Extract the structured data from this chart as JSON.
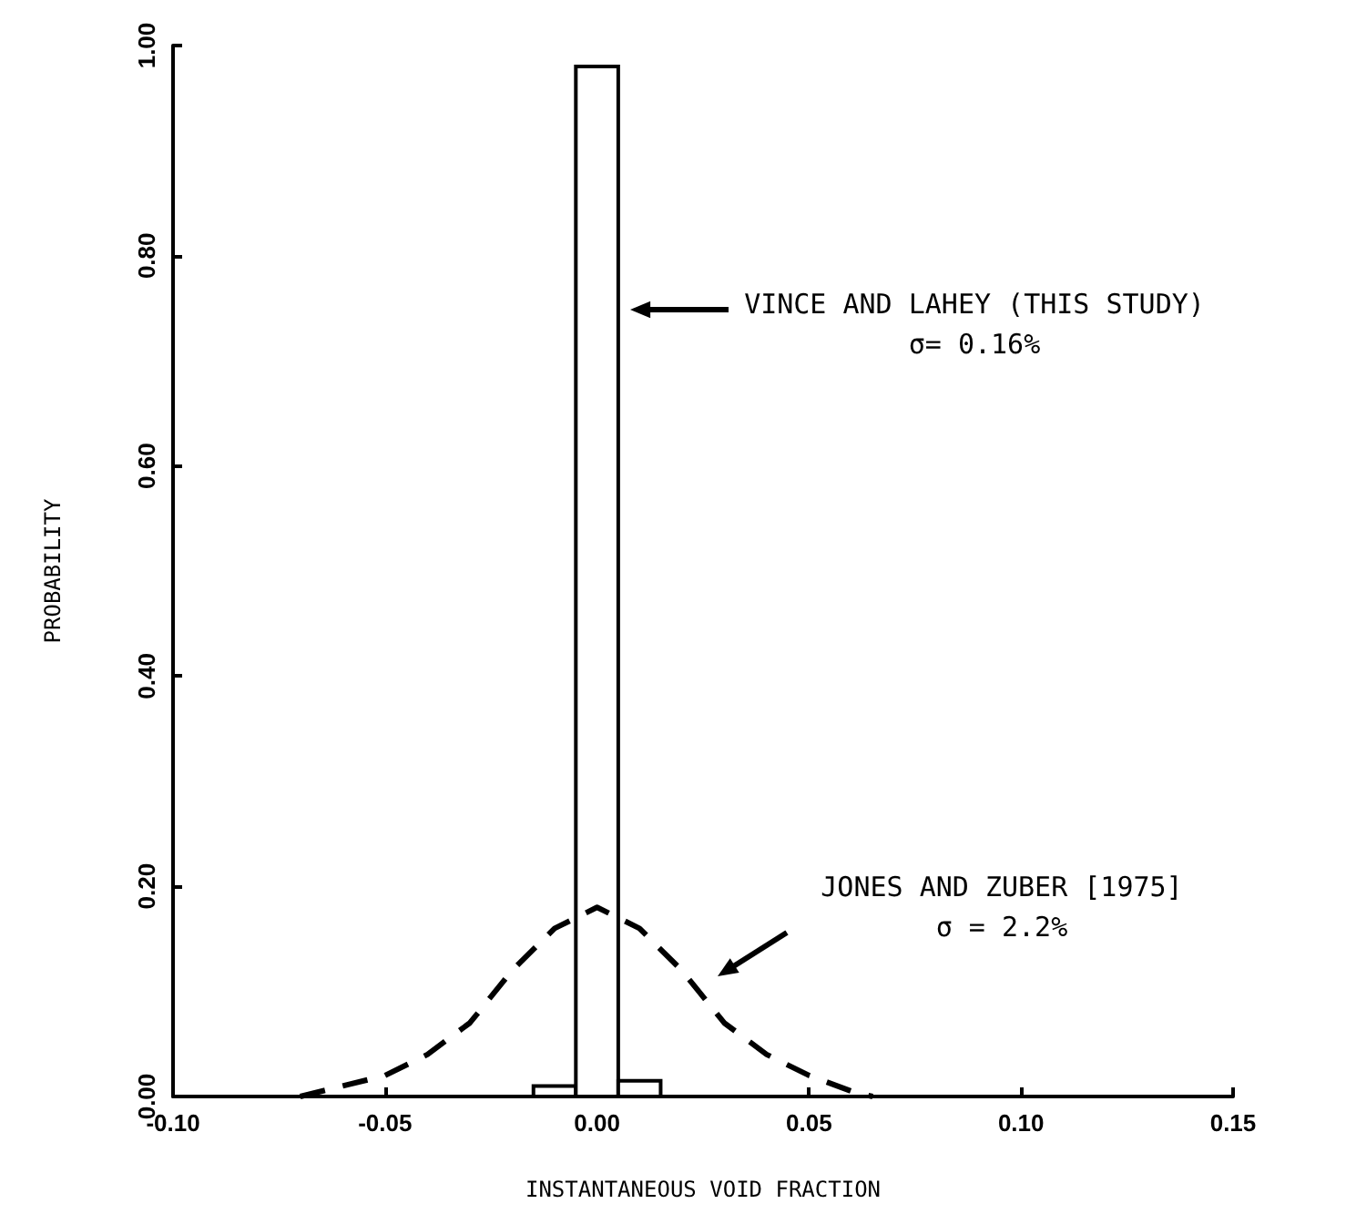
{
  "chart_data": {
    "type": "histogram",
    "xlabel": "INSTANTANEOUS VOID FRACTION",
    "ylabel": "PROBABILITY",
    "xlim": [
      -0.1,
      0.15
    ],
    "xticks": [
      {
        "value": -0.1,
        "label": "-0.10"
      },
      {
        "value": -0.05,
        "label": "-0.05"
      },
      {
        "value": 0,
        "label": "0.00"
      },
      {
        "value": 0.05,
        "label": "0.05"
      },
      {
        "value": 0.1,
        "label": "0.10"
      },
      {
        "value": 0.15,
        "label": "0.15"
      }
    ],
    "ylim": [
      0,
      1
    ],
    "yticks": [
      {
        "value": 0,
        "label": "0.00"
      },
      {
        "value": 0.2,
        "label": "0.20"
      },
      {
        "value": 0.4,
        "label": "0.40"
      },
      {
        "value": 0.6,
        "label": "0.60"
      },
      {
        "value": 0.8,
        "label": "0.80"
      },
      {
        "value": 1,
        "label": "1.00"
      }
    ],
    "grid": false,
    "series": [
      {
        "type": "histogram",
        "color": "#000000",
        "bins": [
          -0.015,
          -0.005,
          0.005,
          0.015
        ],
        "values": [
          0.01,
          0.98,
          0.015
        ]
      },
      {
        "type": "line",
        "color": "#000000",
        "line_style": "dashed",
        "marker": "none",
        "x": [
          -0.07,
          -0.06,
          -0.05,
          -0.04,
          -0.03,
          -0.02,
          -0.01,
          0,
          0.01,
          0.02,
          0.03,
          0.04,
          0.05,
          0.06,
          0.065
        ],
        "values": [
          0,
          0.01,
          0.02,
          0.04,
          0.07,
          0.12,
          0.16,
          0.18,
          0.16,
          0.12,
          0.07,
          0.04,
          0.02,
          0.005,
          0
        ]
      }
    ],
    "annotations": [
      "VINCE AND LAHEY (THIS STUDY)\nσ= 0.16%",
      "JONES AND ZUBER [1975]\nσ = 2.2%"
    ]
  }
}
